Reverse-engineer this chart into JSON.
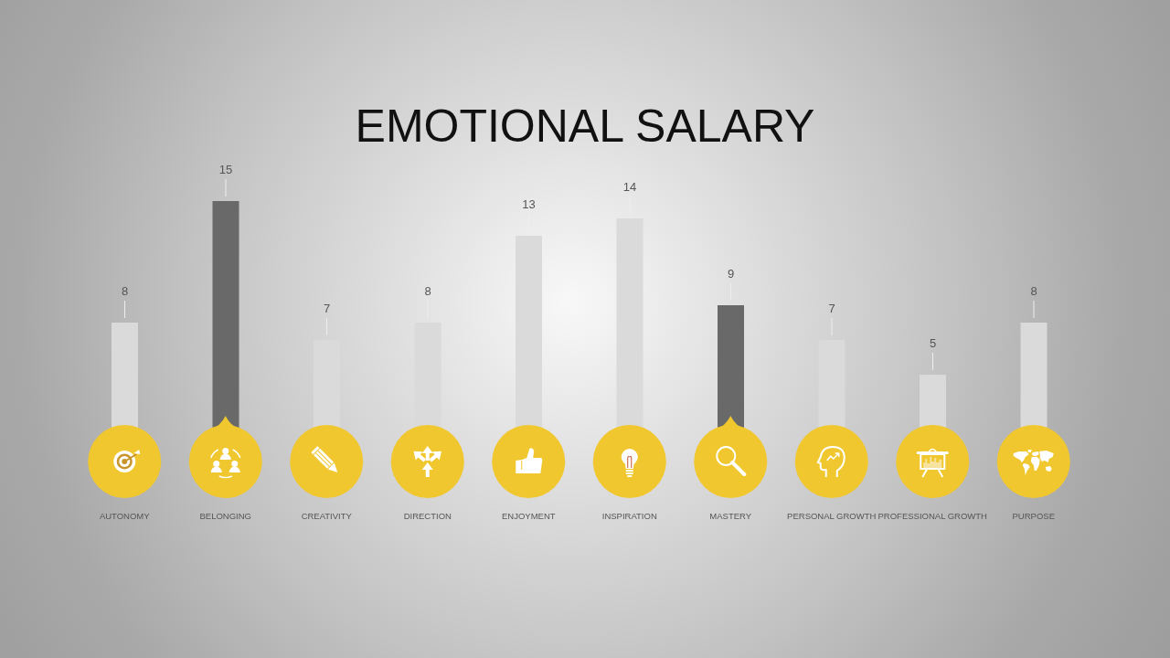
{
  "chart_data": {
    "type": "bar",
    "title": "EMOTIONAL SALARY",
    "categories": [
      "AUTONOMY",
      "BELONGING",
      "CREATIVITY",
      "DIRECTION",
      "ENJOYMENT",
      "INSPIRATION",
      "MASTERY",
      "PERSONAL GROWTH",
      "PROFESSIONAL GROWTH",
      "PURPOSE"
    ],
    "values": [
      8,
      15,
      7,
      8,
      13,
      14,
      9,
      7,
      5,
      8
    ],
    "colors": [
      "#dadada",
      "#696969",
      "#dadada",
      "#dadada",
      "#dadada",
      "#dadada",
      "#696969",
      "#dadada",
      "#dadada",
      "#dadada"
    ],
    "data_labels": true
  }
}
